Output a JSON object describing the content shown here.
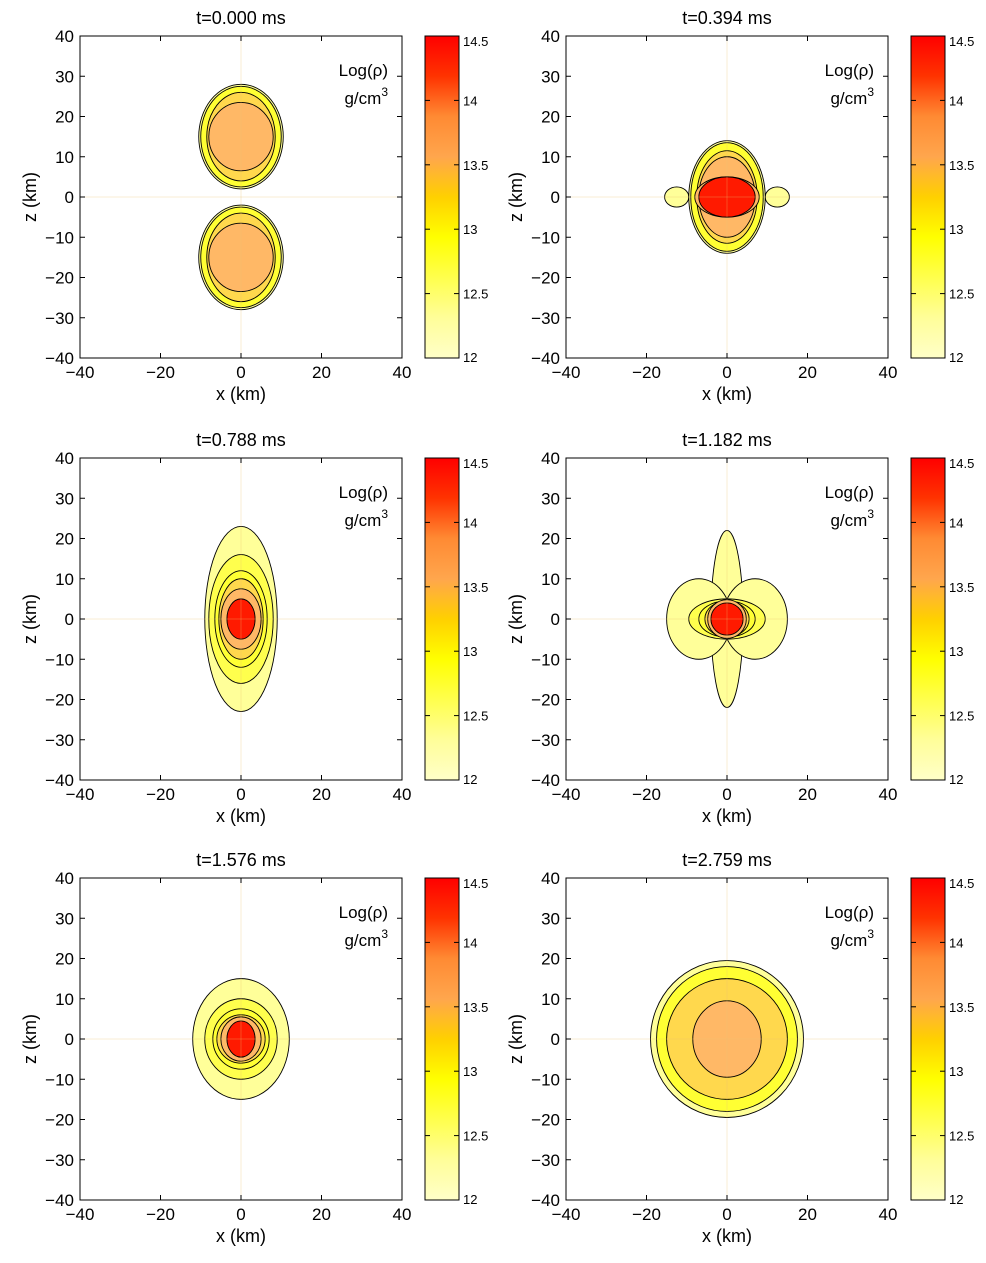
{
  "figure": {
    "colorbar_ticks": [
      "12",
      "12.5",
      "13",
      "13.5",
      "14",
      "14.5"
    ],
    "colorbar_stops": [
      "#ffffc8",
      "#fffe99",
      "#ffff4d",
      "#ffff00",
      "#ffd000",
      "#ffa64d",
      "#ff8a33",
      "#ff3300",
      "#ff0000"
    ],
    "contour_line_color": "#000000"
  },
  "chart_data": [
    {
      "type": "contour",
      "title": "t=0.000 ms",
      "xlabel": "x (km)",
      "ylabel": "z (km)",
      "xlim": [
        -40,
        40
      ],
      "ylim": [
        -40,
        40
      ],
      "xticks": [
        "−40",
        "−20",
        "0",
        "20",
        "40"
      ],
      "yticks": [
        "−40",
        "−30",
        "−20",
        "−10",
        "0",
        "10",
        "20",
        "30",
        "40"
      ],
      "colorbar_label_line1": "Log(ρ)",
      "colorbar_label_line2": "g/cm",
      "colorbar_label_sup": "3",
      "colorbar_range": [
        12,
        14.5
      ],
      "regions": [
        {
          "level": 12.3,
          "color": "#ffff99",
          "cx": 0,
          "cz": 15,
          "rx": 10.5,
          "rz": 13
        },
        {
          "level": 13.5,
          "color": "#ffff33",
          "cx": 0,
          "cz": 15,
          "rx": 10,
          "rz": 12.5
        },
        {
          "level": 13.7,
          "color": "#ffd84d",
          "cx": 0,
          "cz": 15,
          "rx": 8.5,
          "rz": 11
        },
        {
          "level": 14.0,
          "color": "#ffb866",
          "cx": 0,
          "cz": 15,
          "rx": 8,
          "rz": 8.5
        },
        {
          "level": 12.3,
          "color": "#ffff99",
          "cx": 0,
          "cz": -15,
          "rx": 10.5,
          "rz": 13
        },
        {
          "level": 13.5,
          "color": "#ffff33",
          "cx": 0,
          "cz": -15,
          "rx": 10,
          "rz": 12.5
        },
        {
          "level": 13.7,
          "color": "#ffd84d",
          "cx": 0,
          "cz": -15,
          "rx": 8.5,
          "rz": 11
        },
        {
          "level": 14.0,
          "color": "#ffb866",
          "cx": 0,
          "cz": -15,
          "rx": 8,
          "rz": 8.5
        }
      ]
    },
    {
      "type": "contour",
      "title": "t=0.394 ms",
      "xlabel": "x (km)",
      "ylabel": "z (km)",
      "xlim": [
        -40,
        40
      ],
      "ylim": [
        -40,
        40
      ],
      "xticks": [
        "−40",
        "−20",
        "0",
        "20",
        "40"
      ],
      "yticks": [
        "−40",
        "−30",
        "−20",
        "−10",
        "0",
        "10",
        "20",
        "30",
        "40"
      ],
      "colorbar_label_line1": "Log(ρ)",
      "colorbar_label_line2": "g/cm",
      "colorbar_label_sup": "3",
      "colorbar_range": [
        12,
        14.5
      ],
      "regions": [
        {
          "level": 12.2,
          "color": "#ffff99",
          "cx": -12.5,
          "cz": 0,
          "rx": 3,
          "rz": 2.5
        },
        {
          "level": 12.2,
          "color": "#ffff99",
          "cx": 12.5,
          "cz": 0,
          "rx": 3,
          "rz": 2.5
        },
        {
          "level": 12.3,
          "color": "#ffff99",
          "cx": 0,
          "cz": 0,
          "rx": 9.5,
          "rz": 14
        },
        {
          "level": 13.5,
          "color": "#ffff33",
          "cx": 0,
          "cz": 0,
          "rx": 9,
          "rz": 13.5
        },
        {
          "level": 13.7,
          "color": "#ffd84d",
          "cx": 0,
          "cz": 0,
          "rx": 7.5,
          "rz": 11.5
        },
        {
          "level": 14.0,
          "color": "#ffb866",
          "cx": 0,
          "cz": 0,
          "rx": 7,
          "rz": 10
        },
        {
          "level": 14.1,
          "color": "#ffb866",
          "cx": 0,
          "cz": 0,
          "rx": 8,
          "rz": 5
        },
        {
          "level": 14.4,
          "color": "#ff1a00",
          "cx": 0,
          "cz": 0,
          "rx": 7,
          "rz": 5
        }
      ]
    },
    {
      "type": "contour",
      "title": "t=0.788 ms",
      "xlabel": "x (km)",
      "ylabel": "z (km)",
      "xlim": [
        -40,
        40
      ],
      "ylim": [
        -40,
        40
      ],
      "xticks": [
        "−40",
        "−20",
        "0",
        "20",
        "40"
      ],
      "yticks": [
        "−40",
        "−30",
        "−20",
        "−10",
        "0",
        "10",
        "20",
        "30",
        "40"
      ],
      "colorbar_label_line1": "Log(ρ)",
      "colorbar_label_line2": "g/cm",
      "colorbar_label_sup": "3",
      "colorbar_range": [
        12,
        14.5
      ],
      "regions": [
        {
          "level": 12.2,
          "color": "#ffff99",
          "cx": 0,
          "cz": 0,
          "rx": 9,
          "rz": 23
        },
        {
          "level": 13.2,
          "color": "#ffff4d",
          "cx": 0,
          "cz": 0,
          "rx": 8,
          "rz": 16
        },
        {
          "level": 13.5,
          "color": "#ffff33",
          "cx": 0,
          "cz": 0,
          "rx": 6.5,
          "rz": 12
        },
        {
          "level": 13.7,
          "color": "#ffd84d",
          "cx": 0,
          "cz": 0,
          "rx": 5.5,
          "rz": 10
        },
        {
          "level": 14.0,
          "color": "#ffb866",
          "cx": 0,
          "cz": 0,
          "rx": 5,
          "rz": 7.5
        },
        {
          "level": 14.4,
          "color": "#ff1a00",
          "cx": 0,
          "cz": 0,
          "rx": 3.5,
          "rz": 5
        }
      ]
    },
    {
      "type": "contour",
      "title": "t=1.182 ms",
      "xlabel": "x (km)",
      "ylabel": "z (km)",
      "xlim": [
        -40,
        40
      ],
      "ylim": [
        -40,
        40
      ],
      "xticks": [
        "−40",
        "−20",
        "0",
        "20",
        "40"
      ],
      "yticks": [
        "−40",
        "−30",
        "−20",
        "−10",
        "0",
        "10",
        "20",
        "30",
        "40"
      ],
      "colorbar_label_line1": "Log(ρ)",
      "colorbar_label_line2": "g/cm",
      "colorbar_label_sup": "3",
      "colorbar_range": [
        12,
        14.5
      ],
      "regions": [
        {
          "level": 12.2,
          "color": "#ffff99",
          "cx": 0,
          "cz": 0,
          "rx": 4,
          "rz": 22
        },
        {
          "level": 12.2,
          "color": "#ffff99",
          "cx": -7,
          "cz": 0,
          "rx": 8,
          "rz": 10
        },
        {
          "level": 12.2,
          "color": "#ffff99",
          "cx": 7,
          "cz": 0,
          "rx": 8,
          "rz": 10
        },
        {
          "level": 13.2,
          "color": "#ffff4d",
          "cx": 0,
          "cz": 0,
          "rx": 9.5,
          "rz": 5
        },
        {
          "level": 13.5,
          "color": "#ffff33",
          "cx": 0,
          "cz": 0,
          "rx": 7,
          "rz": 4.5
        },
        {
          "level": 13.7,
          "color": "#ffd84d",
          "cx": 0,
          "cz": 0,
          "rx": 5.5,
          "rz": 4.5
        },
        {
          "level": 14.0,
          "color": "#ffb866",
          "cx": 0,
          "cz": 0,
          "rx": 4.8,
          "rz": 4.8
        },
        {
          "level": 14.4,
          "color": "#ff1a00",
          "cx": 0,
          "cz": 0,
          "rx": 4,
          "rz": 4
        }
      ]
    },
    {
      "type": "contour",
      "title": "t=1.576 ms",
      "xlabel": "x (km)",
      "ylabel": "z (km)",
      "xlim": [
        -40,
        40
      ],
      "ylim": [
        -40,
        40
      ],
      "xticks": [
        "−40",
        "−20",
        "0",
        "20",
        "40"
      ],
      "yticks": [
        "−40",
        "−30",
        "−20",
        "−10",
        "0",
        "10",
        "20",
        "30",
        "40"
      ],
      "colorbar_label_line1": "Log(ρ)",
      "colorbar_label_line2": "g/cm",
      "colorbar_label_sup": "3",
      "colorbar_range": [
        12,
        14.5
      ],
      "regions": [
        {
          "level": 12.2,
          "color": "#ffff99",
          "cx": 0,
          "cz": 0,
          "rx": 12,
          "rz": 15
        },
        {
          "level": 13.2,
          "color": "#ffff4d",
          "cx": 0,
          "cz": 0,
          "rx": 9,
          "rz": 10
        },
        {
          "level": 13.5,
          "color": "#ffff33",
          "cx": 0,
          "cz": 0,
          "rx": 7,
          "rz": 7.5
        },
        {
          "level": 13.7,
          "color": "#ffd84d",
          "cx": 0,
          "cz": 0,
          "rx": 6,
          "rz": 6
        },
        {
          "level": 14.0,
          "color": "#ffb866",
          "cx": 0,
          "cz": 0,
          "rx": 5,
          "rz": 5.5
        },
        {
          "level": 14.4,
          "color": "#ff1a00",
          "cx": 0,
          "cz": 0,
          "rx": 3.5,
          "rz": 4.5
        }
      ]
    },
    {
      "type": "contour",
      "title": "t=2.759 ms",
      "xlabel": "x (km)",
      "ylabel": "z (km)",
      "xlim": [
        -40,
        40
      ],
      "ylim": [
        -40,
        40
      ],
      "xticks": [
        "−40",
        "−20",
        "0",
        "20",
        "40"
      ],
      "yticks": [
        "−40",
        "−30",
        "−20",
        "−10",
        "0",
        "10",
        "20",
        "30",
        "40"
      ],
      "colorbar_label_line1": "Log(ρ)",
      "colorbar_label_line2": "g/cm",
      "colorbar_label_sup": "3",
      "colorbar_range": [
        12,
        14.5
      ],
      "regions": [
        {
          "level": 12.3,
          "color": "#ffff99",
          "cx": 0,
          "cz": 0,
          "rx": 19,
          "rz": 19.5
        },
        {
          "level": 13.5,
          "color": "#ffff33",
          "cx": 0,
          "cz": 0,
          "rx": 17.5,
          "rz": 18
        },
        {
          "level": 13.7,
          "color": "#ffd84d",
          "cx": 0,
          "cz": 0,
          "rx": 15,
          "rz": 15
        },
        {
          "level": 14.0,
          "color": "#ffb866",
          "cx": 0,
          "cz": 0,
          "rx": 8.5,
          "rz": 9.5
        }
      ]
    }
  ]
}
